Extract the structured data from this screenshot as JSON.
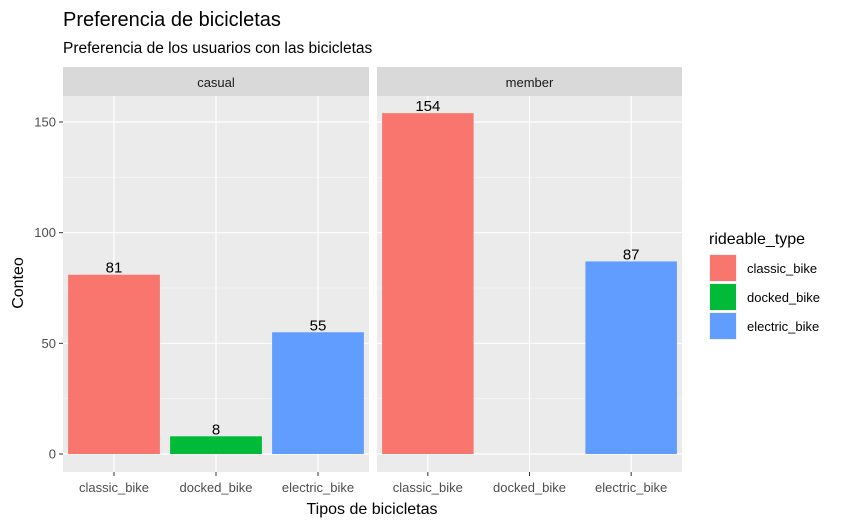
{
  "chart_data": {
    "type": "bar",
    "title": "Preferencia de bicicletas",
    "subtitle": "Preferencia de los usuarios con las bicicletas",
    "xlabel": "Tipos de bicicletas",
    "ylabel": "Conteo",
    "ylim": [
      0,
      170
    ],
    "yticks": [
      0,
      50,
      100,
      150
    ],
    "grid": true,
    "categories": [
      "classic_bike",
      "docked_bike",
      "electric_bike"
    ],
    "facets": [
      {
        "label": "casual",
        "values": [
          81,
          8,
          55
        ]
      },
      {
        "label": "member",
        "values": [
          154,
          null,
          87
        ]
      }
    ],
    "legend": {
      "title": "rideable_type",
      "position": "right",
      "entries": [
        "classic_bike",
        "docked_bike",
        "electric_bike"
      ]
    },
    "colors": {
      "classic_bike": "#F8766D",
      "docked_bike": "#00BA38",
      "electric_bike": "#619CFF"
    }
  }
}
